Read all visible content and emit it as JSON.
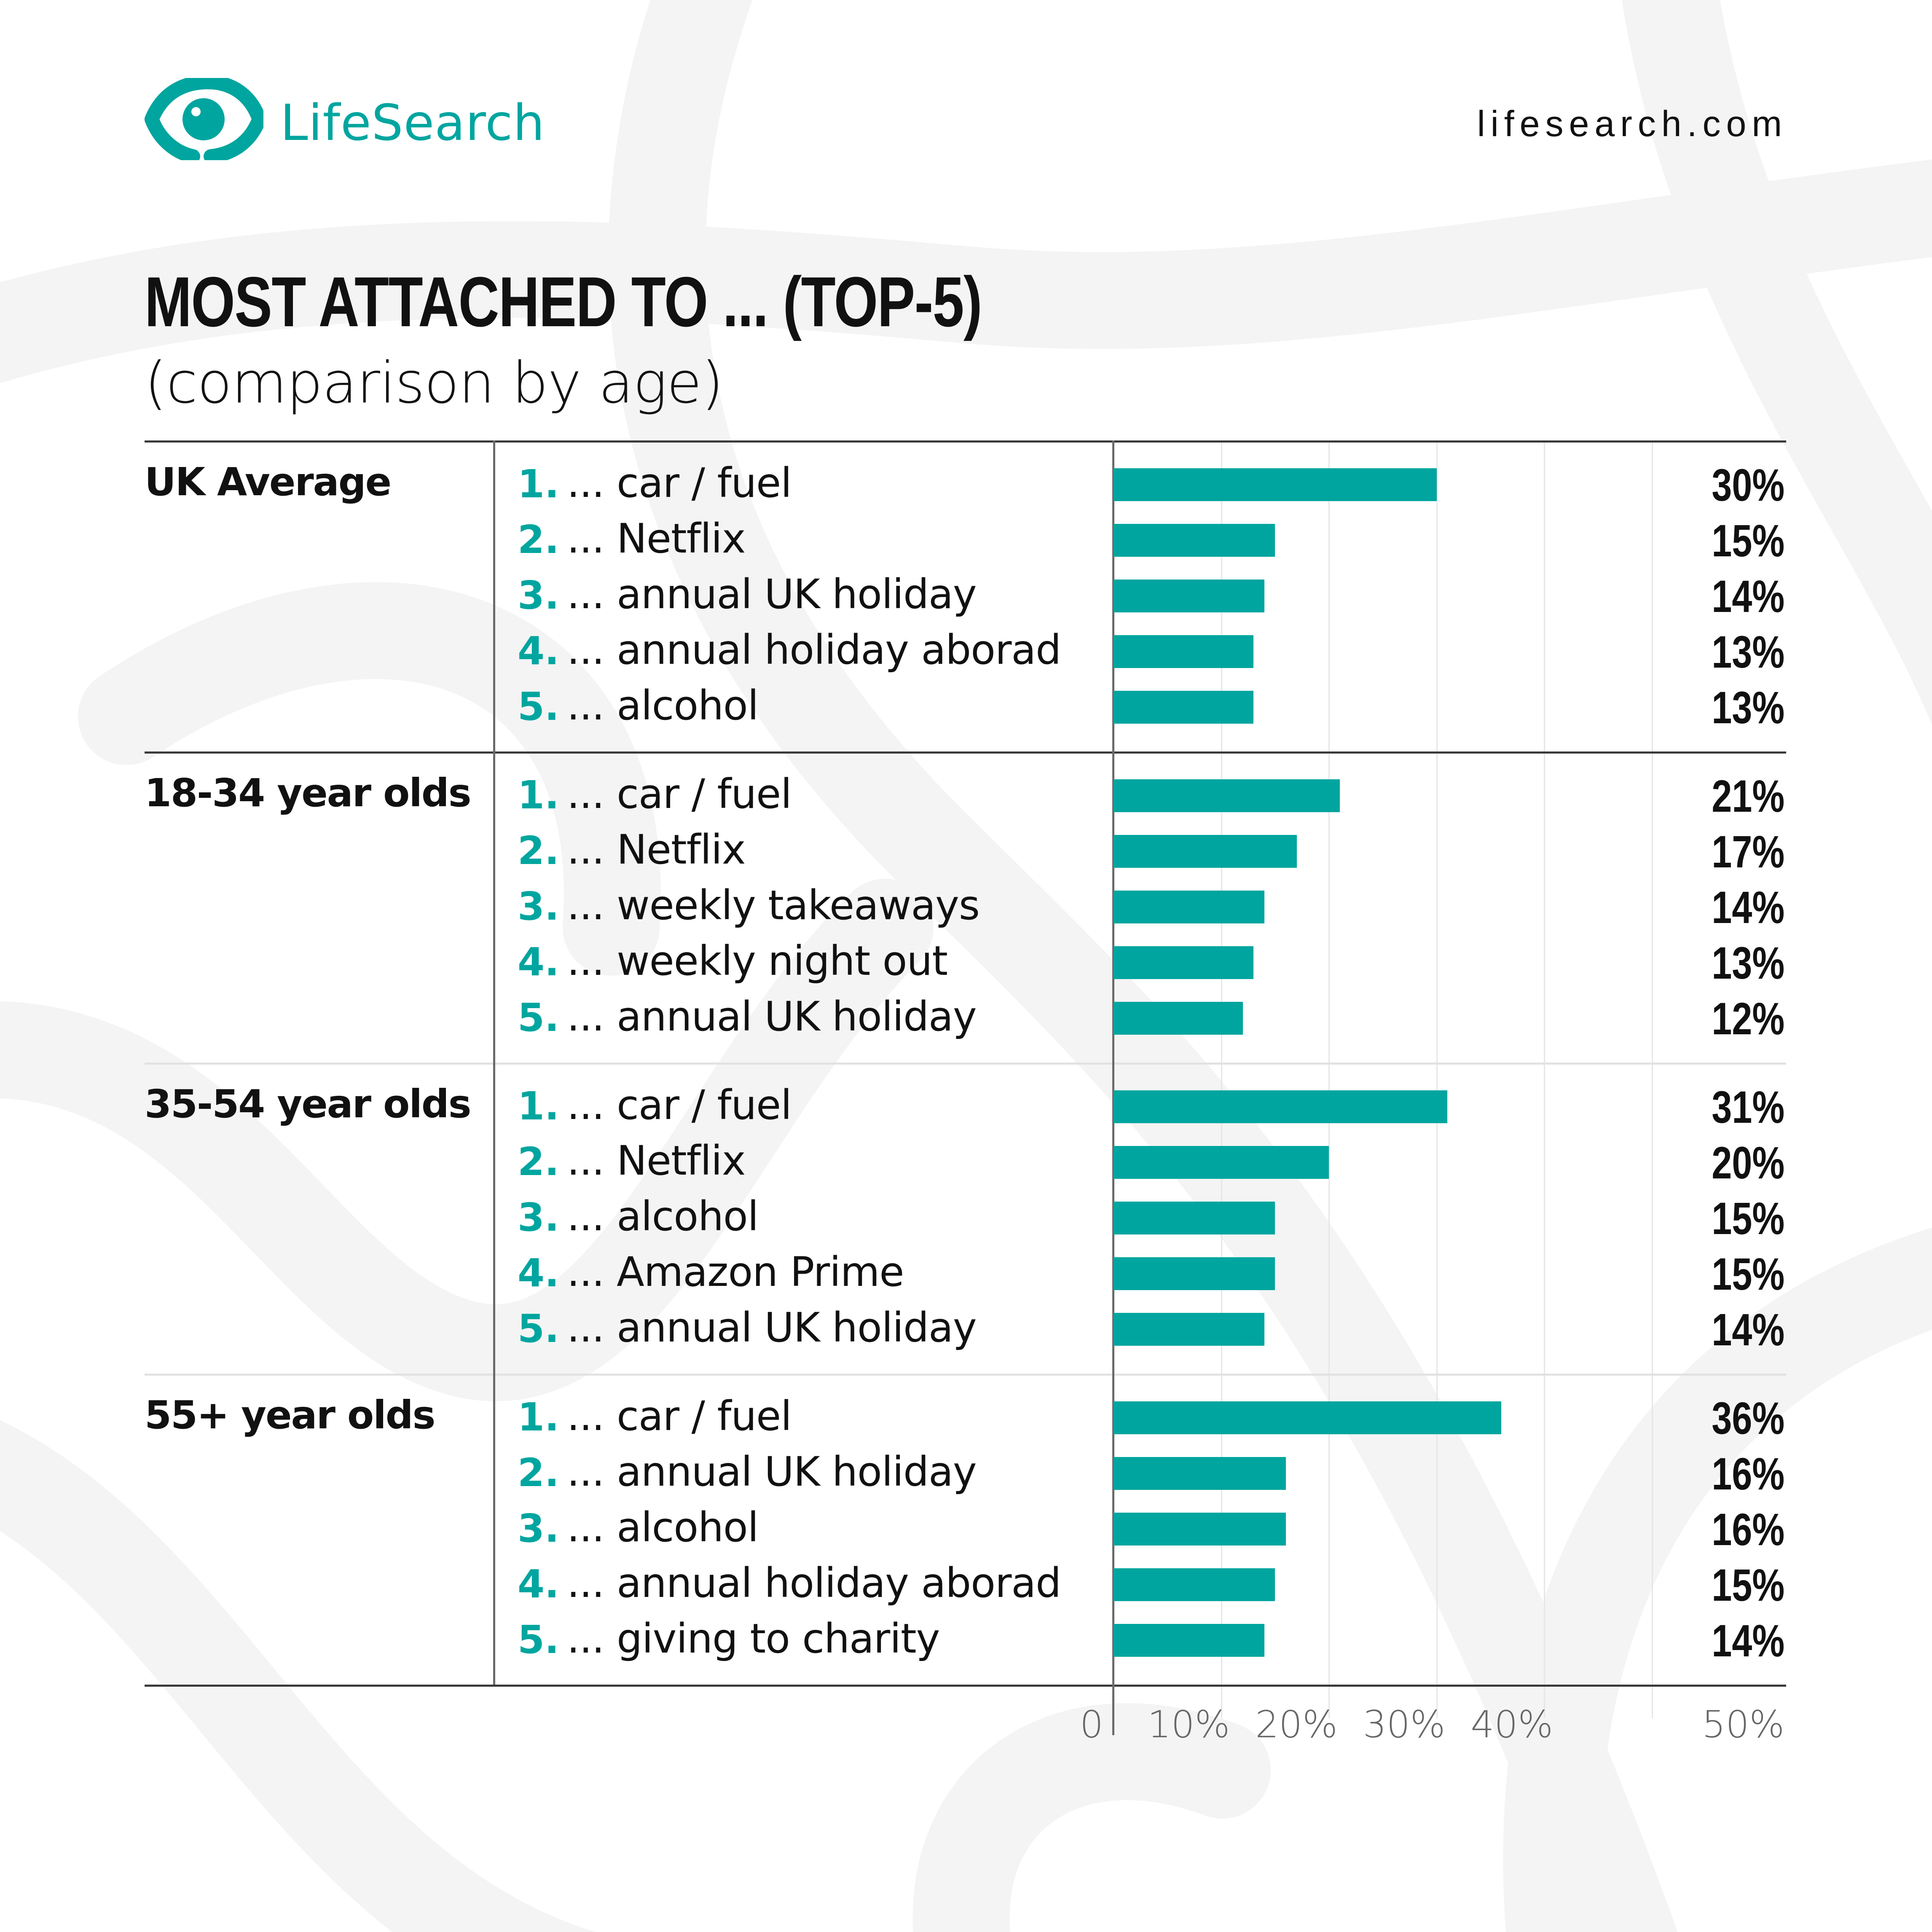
{
  "brand": {
    "name": "LifeSearch",
    "url": "lifesearch.com",
    "accent": "#00a59f",
    "logo_icon": "eye-logo-icon"
  },
  "chart_data": {
    "type": "bar",
    "orientation": "horizontal",
    "title": "MOST ATTACHED TO ... (TOP-5)",
    "subtitle": "(comparison by age)",
    "xlim": [
      0,
      50
    ],
    "ticks": [
      "0",
      "10%",
      "20%",
      "30%",
      "40%",
      "50%"
    ],
    "bar_color": "#00a59f",
    "groups": [
      {
        "label": "UK Average",
        "items": [
          {
            "rank": "1.",
            "label": "... car / fuel",
            "value": 30,
            "value_label": "30%"
          },
          {
            "rank": "2.",
            "label": "... Netflix",
            "value": 15,
            "value_label": "15%"
          },
          {
            "rank": "3.",
            "label": "... annual UK holiday",
            "value": 14,
            "value_label": "14%"
          },
          {
            "rank": "4.",
            "label": "... annual holiday aborad",
            "value": 13,
            "value_label": "13%"
          },
          {
            "rank": "5.",
            "label": "... alcohol",
            "value": 13,
            "value_label": "13%"
          }
        ]
      },
      {
        "label": "18-34 year olds",
        "items": [
          {
            "rank": "1.",
            "label": "... car / fuel",
            "value": 21,
            "value_label": "21%"
          },
          {
            "rank": "2.",
            "label": "... Netflix",
            "value": 17,
            "value_label": "17%"
          },
          {
            "rank": "3.",
            "label": "... weekly takeaways",
            "value": 14,
            "value_label": "14%"
          },
          {
            "rank": "4.",
            "label": "... weekly night out",
            "value": 13,
            "value_label": "13%"
          },
          {
            "rank": "5.",
            "label": "... annual UK holiday",
            "value": 12,
            "value_label": "12%"
          }
        ]
      },
      {
        "label": "35-54 year olds",
        "items": [
          {
            "rank": "1.",
            "label": "... car / fuel",
            "value": 31,
            "value_label": "31%"
          },
          {
            "rank": "2.",
            "label": "... Netflix",
            "value": 20,
            "value_label": "20%"
          },
          {
            "rank": "3.",
            "label": "... alcohol",
            "value": 15,
            "value_label": "15%"
          },
          {
            "rank": "4.",
            "label": "... Amazon Prime",
            "value": 15,
            "value_label": "15%"
          },
          {
            "rank": "5.",
            "label": "... annual UK holiday",
            "value": 14,
            "value_label": "14%"
          }
        ]
      },
      {
        "label": "55+ year olds",
        "items": [
          {
            "rank": "1.",
            "label": "... car / fuel",
            "value": 36,
            "value_label": "36%"
          },
          {
            "rank": "2.",
            "label": "... annual UK holiday",
            "value": 16,
            "value_label": "16%"
          },
          {
            "rank": "3.",
            "label": "... alcohol",
            "value": 16,
            "value_label": "16%"
          },
          {
            "rank": "4.",
            "label": "... annual holiday aborad",
            "value": 15,
            "value_label": "15%"
          },
          {
            "rank": "5.",
            "label": "... giving to charity",
            "value": 14,
            "value_label": "14%"
          }
        ]
      }
    ]
  }
}
